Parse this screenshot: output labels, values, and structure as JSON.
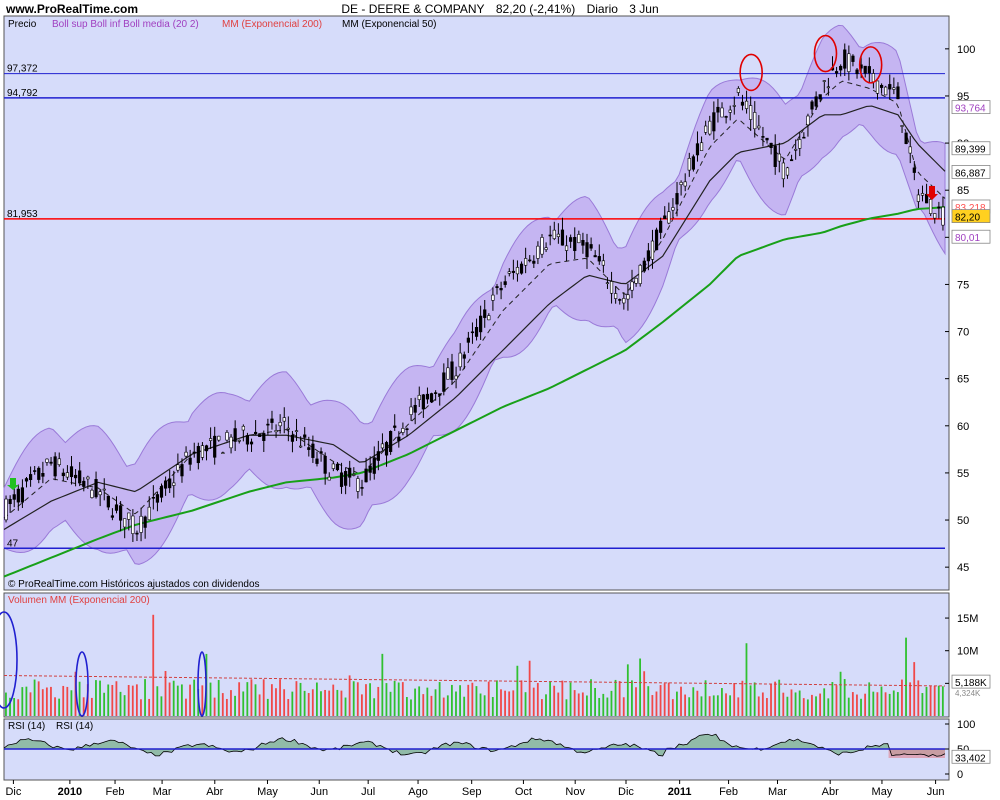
{
  "header": {
    "site": "www.ProRealTime.com",
    "instrument": "DE - DEERE & COMPANY",
    "price_change": "82,20 (-2,41%)",
    "period": "Diario",
    "date": "3 Jun"
  },
  "price_panel": {
    "legend": {
      "price": "Precio",
      "boll": "Boll sup Boll inf Boll media (20 2)",
      "ema200": "MM (Exponencial 200)",
      "ema50": "MM (Exponencial 50)"
    },
    "source_note": "© ProRealTime.com Históricos ajustados con dividendos",
    "y_ticks": [
      "45",
      "50",
      "55",
      "60",
      "65",
      "70",
      "75",
      "80",
      "85",
      "90",
      "95",
      "100"
    ],
    "hlines": [
      {
        "value": 97.372,
        "label": "97,372",
        "color": "#2020d0"
      },
      {
        "value": 94.792,
        "label": "94,792",
        "color": "#2020d0"
      },
      {
        "value": 81.953,
        "label": "81,953",
        "color": "#ff0000"
      },
      {
        "value": 47,
        "label": "47",
        "color": "#2020d0"
      }
    ],
    "price_tags": [
      {
        "value": 93.764,
        "label": "93,764",
        "color": "#a040c0"
      },
      {
        "value": 89.399,
        "label": "89,399",
        "color": "#000000"
      },
      {
        "value": 86.887,
        "label": "86,887",
        "color": "#000000"
      },
      {
        "value": 83.218,
        "label": "83,218",
        "color": "#ff5050"
      },
      {
        "value": 82.2,
        "label": "82,20",
        "color": "#000000",
        "bg": "#ffd020"
      },
      {
        "value": 80.01,
        "label": "80,01",
        "color": "#a040c0"
      }
    ]
  },
  "volume_panel": {
    "legend": "Volumen MM (Exponencial 200)",
    "y_ticks": [
      "5M",
      "10M",
      "15M"
    ],
    "current_tag": "5,188K",
    "ema_tag": "4,324K"
  },
  "rsi_panel": {
    "legend1": "RSI (14)",
    "legend2": "RSI (14)",
    "y_ticks": [
      "0",
      "50",
      "100"
    ],
    "current_tag": "33,402"
  },
  "x_labels": [
    {
      "text": "Dic",
      "bold": false,
      "t": 0.01
    },
    {
      "text": "2010",
      "bold": true,
      "t": 0.07
    },
    {
      "text": "Feb",
      "bold": false,
      "t": 0.118
    },
    {
      "text": "Mar",
      "bold": false,
      "t": 0.168
    },
    {
      "text": "Abr",
      "bold": false,
      "t": 0.224
    },
    {
      "text": "May",
      "bold": false,
      "t": 0.28
    },
    {
      "text": "Jun",
      "bold": false,
      "t": 0.335
    },
    {
      "text": "Jul",
      "bold": false,
      "t": 0.387
    },
    {
      "text": "Ago",
      "bold": false,
      "t": 0.44
    },
    {
      "text": "Sep",
      "bold": false,
      "t": 0.497
    },
    {
      "text": "Oct",
      "bold": false,
      "t": 0.552
    },
    {
      "text": "Nov",
      "bold": false,
      "t": 0.607
    },
    {
      "text": "Dic",
      "bold": false,
      "t": 0.661
    },
    {
      "text": "2011",
      "bold": true,
      "t": 0.718
    },
    {
      "text": "Feb",
      "bold": false,
      "t": 0.77
    },
    {
      "text": "Mar",
      "bold": false,
      "t": 0.822
    },
    {
      "text": "Abr",
      "bold": false,
      "t": 0.878
    },
    {
      "text": "May",
      "bold": false,
      "t": 0.933
    },
    {
      "text": "Jun",
      "bold": false,
      "t": 0.99
    }
  ],
  "chart_data": {
    "type": "line",
    "series": [
      {
        "name": "Precio",
        "x": [
          0.0,
          0.05,
          0.1,
          0.14,
          0.2,
          0.26,
          0.3,
          0.35,
          0.38,
          0.43,
          0.48,
          0.53,
          0.58,
          0.62,
          0.66,
          0.7,
          0.75,
          0.78,
          0.83,
          0.87,
          0.89,
          0.92,
          0.95,
          0.97,
          1.0
        ],
        "values": [
          51,
          56,
          53,
          49,
          57,
          59,
          60,
          55,
          54,
          61,
          66,
          75,
          80,
          79,
          73,
          81,
          92,
          95,
          87,
          96,
          99,
          97,
          95,
          85,
          82.2
        ]
      },
      {
        "name": "MM (Exponencial 200)",
        "x": [
          0.0,
          0.05,
          0.1,
          0.14,
          0.2,
          0.26,
          0.3,
          0.35,
          0.38,
          0.43,
          0.48,
          0.53,
          0.58,
          0.62,
          0.66,
          0.7,
          0.75,
          0.78,
          0.83,
          0.87,
          0.89,
          0.92,
          0.95,
          0.97,
          1.0
        ],
        "values": [
          44,
          46,
          48,
          49.5,
          51,
          53,
          54,
          54.5,
          55,
          57,
          59.5,
          62,
          64,
          66,
          68,
          71,
          75,
          78,
          79.8,
          80.5,
          81.2,
          82,
          82.5,
          83,
          83.2
        ]
      },
      {
        "name": "MM (Exponencial 50)",
        "x": [
          0.0,
          0.05,
          0.1,
          0.14,
          0.2,
          0.26,
          0.3,
          0.35,
          0.38,
          0.43,
          0.48,
          0.53,
          0.58,
          0.62,
          0.66,
          0.7,
          0.75,
          0.78,
          0.83,
          0.87,
          0.89,
          0.92,
          0.95,
          0.97,
          1.0
        ],
        "values": [
          49,
          52,
          54,
          53,
          57,
          59,
          59,
          58,
          56,
          59,
          63,
          68,
          73,
          76,
          75,
          78,
          86,
          89,
          90,
          93,
          93,
          94,
          93,
          90,
          87
        ]
      }
    ],
    "ylim": [
      43,
      102
    ],
    "annotations": [
      {
        "type": "hline",
        "value": 97.372,
        "label": "97,372"
      },
      {
        "type": "hline",
        "value": 94.792,
        "label": "94,792"
      },
      {
        "type": "hline",
        "value": 81.953,
        "label": "81,953"
      },
      {
        "type": "hline",
        "value": 47,
        "label": "47"
      }
    ]
  }
}
